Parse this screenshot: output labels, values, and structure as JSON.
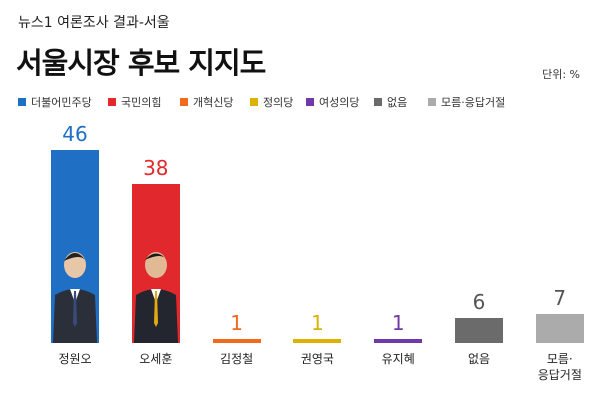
{
  "chart_data": {
    "type": "bar",
    "subtitle": "뉴스1 여론조사 결과-서울",
    "title": "서울시장 후보 지지도",
    "unit": "단위: %",
    "legend": [
      "더불어민주당",
      "국민의힘",
      "개혁신당",
      "정의당",
      "여성의당",
      "없음",
      "모름·응답거절"
    ],
    "categories": [
      "정원오",
      "오세훈",
      "김정철",
      "권영국",
      "유지혜",
      "없음",
      "모름·\n응답거절"
    ],
    "values": [
      46,
      38,
      1,
      1,
      1,
      6,
      7
    ],
    "colors": [
      "#1f6fc5",
      "#e1282c",
      "#f26b1d",
      "#ddb100",
      "#6f3aa8",
      "#6b6b6b",
      "#ababab"
    ]
  }
}
